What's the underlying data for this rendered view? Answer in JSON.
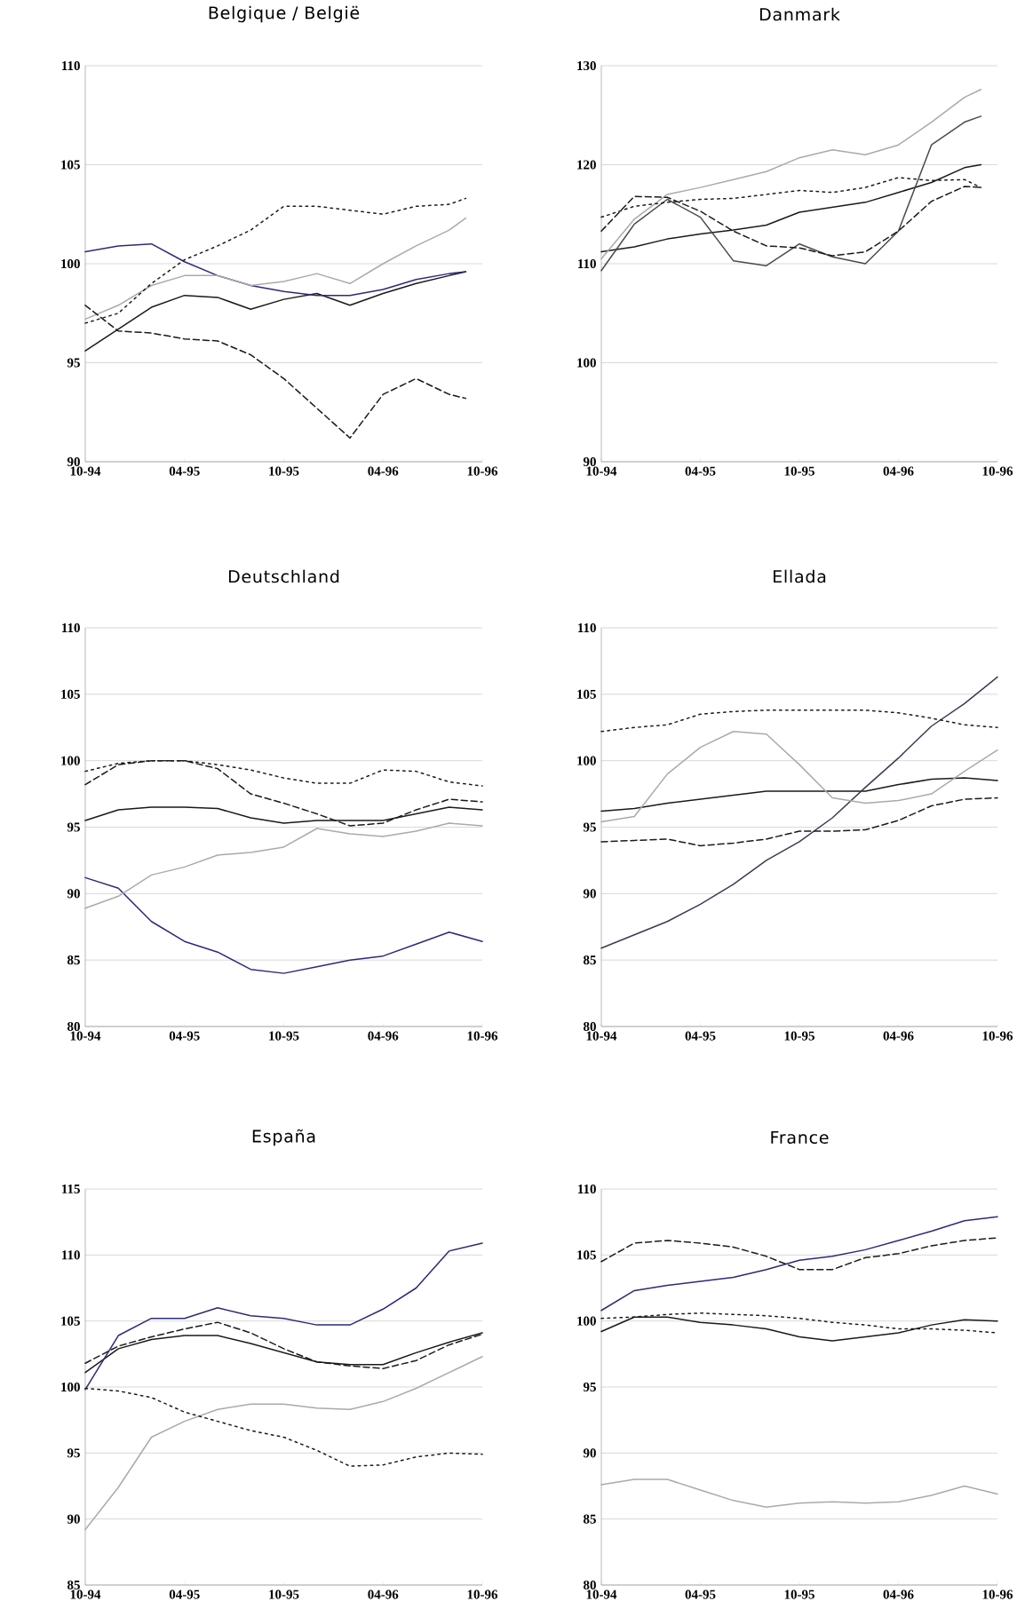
{
  "chart_data": [
    {
      "type": "line",
      "title": "Belgique / België",
      "x": [
        "1994-10",
        "1994-12",
        "1995-02",
        "1995-04",
        "1995-06",
        "1995-08",
        "1995-10",
        "1995-12",
        "1996-02",
        "1996-04",
        "1996-06",
        "1996-08",
        "1996-09"
      ],
      "xlim": [
        "1994-10",
        "1996-10"
      ],
      "xticks": [
        {
          "value": "1994-10",
          "label": "10-94"
        },
        {
          "value": "1995-04",
          "label": "04-95"
        },
        {
          "value": "1995-10",
          "label": "10-95"
        },
        {
          "value": "1996-04",
          "label": "04-96"
        },
        {
          "value": "1996-10",
          "label": "10-96"
        }
      ],
      "ylim": [
        90,
        110
      ],
      "yticks": [
        90,
        95,
        100,
        105,
        110
      ],
      "grid": "y",
      "series": [
        {
          "color": "#1a1a1a",
          "line_style": "solid",
          "values": [
            95.6,
            96.7,
            97.8,
            98.4,
            98.3,
            97.7,
            98.2,
            98.5,
            97.9,
            98.5,
            99.0,
            99.4,
            99.6
          ]
        },
        {
          "color": "#2b2b7a",
          "line_style": "solid",
          "values": [
            100.6,
            100.9,
            101.0,
            100.1,
            99.4,
            98.9,
            98.6,
            98.4,
            98.4,
            98.7,
            99.2,
            99.5,
            99.6
          ]
        },
        {
          "color": "#aaaaaa",
          "line_style": "solid",
          "values": [
            97.2,
            97.9,
            98.9,
            99.4,
            99.4,
            98.9,
            99.1,
            99.5,
            99.0,
            100.0,
            100.9,
            101.7,
            102.3
          ]
        },
        {
          "color": "#1a1a1a",
          "line_style": "dotted",
          "values": [
            97.0,
            97.5,
            99.0,
            100.2,
            100.9,
            101.7,
            102.9,
            102.9,
            102.7,
            102.5,
            102.9,
            103.0,
            103.3
          ]
        },
        {
          "color": "#1a1a1a",
          "line_style": "dashed",
          "values": [
            97.9,
            96.6,
            96.5,
            96.2,
            96.1,
            95.4,
            94.2,
            92.7,
            91.2,
            93.4,
            94.2,
            93.4,
            93.2
          ]
        }
      ]
    },
    {
      "type": "line",
      "title": "Danmark",
      "x": [
        "1994-10",
        "1994-12",
        "1995-02",
        "1995-04",
        "1995-06",
        "1995-08",
        "1995-10",
        "1995-12",
        "1996-02",
        "1996-04",
        "1996-06",
        "1996-08",
        "1996-09"
      ],
      "xlim": [
        "1994-10",
        "1996-10"
      ],
      "xticks": [
        {
          "value": "1994-10",
          "label": "10-94"
        },
        {
          "value": "1995-04",
          "label": "04-95"
        },
        {
          "value": "1995-10",
          "label": "10-95"
        },
        {
          "value": "1996-04",
          "label": "04-96"
        },
        {
          "value": "1996-10",
          "label": "10-96"
        }
      ],
      "ylim": [
        90,
        130
      ],
      "yticks": [
        90,
        100,
        110,
        120,
        130
      ],
      "grid": "y",
      "series": [
        {
          "color": "#1a1a1a",
          "line_style": "solid",
          "values": [
            111.2,
            111.7,
            112.5,
            113.0,
            113.4,
            113.9,
            115.2,
            115.7,
            116.2,
            117.2,
            118.2,
            119.7,
            120.0
          ]
        },
        {
          "color": "#4a4a4a",
          "line_style": "solid",
          "values": [
            109.3,
            114.0,
            116.5,
            114.7,
            110.3,
            109.8,
            112.0,
            110.7,
            110.0,
            113.3,
            122.0,
            124.3,
            124.9
          ]
        },
        {
          "color": "#aaaaaa",
          "line_style": "solid",
          "values": [
            110.5,
            114.5,
            117.0,
            117.7,
            118.5,
            119.3,
            120.7,
            121.5,
            121.0,
            122.0,
            124.3,
            126.8,
            127.6
          ]
        },
        {
          "color": "#1a1a1a",
          "line_style": "dotted",
          "values": [
            114.7,
            115.8,
            116.2,
            116.5,
            116.6,
            117.0,
            117.4,
            117.2,
            117.7,
            118.7,
            118.4,
            118.5,
            117.7
          ]
        },
        {
          "color": "#1a1a1a",
          "line_style": "dashed",
          "values": [
            113.3,
            116.8,
            116.7,
            115.3,
            113.3,
            111.8,
            111.6,
            110.8,
            111.2,
            113.3,
            116.3,
            117.8,
            117.7
          ]
        }
      ]
    },
    {
      "type": "line",
      "title": "Deutschland",
      "x": [
        "1994-10",
        "1994-12",
        "1995-02",
        "1995-04",
        "1995-06",
        "1995-08",
        "1995-10",
        "1995-12",
        "1996-02",
        "1996-04",
        "1996-06",
        "1996-08",
        "1996-10"
      ],
      "xlim": [
        "1994-10",
        "1996-10"
      ],
      "xticks": [
        {
          "value": "1994-10",
          "label": "10-94"
        },
        {
          "value": "1995-04",
          "label": "04-95"
        },
        {
          "value": "1995-10",
          "label": "10-95"
        },
        {
          "value": "1996-04",
          "label": "04-96"
        },
        {
          "value": "1996-10",
          "label": "10-96"
        }
      ],
      "ylim": [
        80,
        110
      ],
      "yticks": [
        80,
        85,
        90,
        95,
        100,
        105,
        110
      ],
      "grid": "y",
      "series": [
        {
          "color": "#1a1a1a",
          "line_style": "solid",
          "values": [
            95.5,
            96.3,
            96.5,
            96.5,
            96.4,
            95.7,
            95.3,
            95.5,
            95.5,
            95.5,
            96.0,
            96.5,
            96.3
          ]
        },
        {
          "color": "#2b2b7a",
          "line_style": "solid",
          "values": [
            91.2,
            90.4,
            87.9,
            86.4,
            85.6,
            84.3,
            84.0,
            84.5,
            85.0,
            85.3,
            86.2,
            87.1,
            86.4
          ]
        },
        {
          "color": "#aaaaaa",
          "line_style": "solid",
          "values": [
            88.9,
            89.8,
            91.4,
            92.0,
            92.9,
            93.1,
            93.5,
            94.9,
            94.5,
            94.3,
            94.7,
            95.3,
            95.1
          ]
        },
        {
          "color": "#1a1a1a",
          "line_style": "dotted",
          "values": [
            99.2,
            99.8,
            100.0,
            100.0,
            99.7,
            99.3,
            98.7,
            98.3,
            98.3,
            99.3,
            99.2,
            98.4,
            98.1
          ]
        },
        {
          "color": "#1a1a1a",
          "line_style": "dashed",
          "values": [
            98.2,
            99.7,
            100.0,
            100.0,
            99.4,
            97.5,
            96.8,
            96.0,
            95.1,
            95.3,
            96.3,
            97.1,
            96.9
          ]
        }
      ]
    },
    {
      "type": "line",
      "title": "Ellada",
      "x": [
        "1994-10",
        "1994-12",
        "1995-02",
        "1995-04",
        "1995-06",
        "1995-08",
        "1995-10",
        "1995-12",
        "1996-02",
        "1996-04",
        "1996-06",
        "1996-08",
        "1996-10"
      ],
      "xlim": [
        "1994-10",
        "1996-10"
      ],
      "xticks": [
        {
          "value": "1994-10",
          "label": "10-94"
        },
        {
          "value": "1995-04",
          "label": "04-95"
        },
        {
          "value": "1995-10",
          "label": "10-95"
        },
        {
          "value": "1996-04",
          "label": "04-96"
        },
        {
          "value": "1996-10",
          "label": "10-96"
        }
      ],
      "ylim": [
        80,
        110
      ],
      "yticks": [
        80,
        85,
        90,
        95,
        100,
        105,
        110
      ],
      "grid": "y",
      "series": [
        {
          "color": "#1a1a1a",
          "line_style": "solid",
          "values": [
            96.2,
            96.4,
            96.8,
            97.1,
            97.4,
            97.7,
            97.7,
            97.7,
            97.7,
            98.2,
            98.6,
            98.7,
            98.5
          ]
        },
        {
          "color": "#3a3a55",
          "line_style": "solid",
          "values": [
            85.9,
            86.9,
            87.9,
            89.2,
            90.7,
            92.5,
            93.9,
            95.7,
            98.0,
            100.2,
            102.6,
            104.3,
            106.3
          ]
        },
        {
          "color": "#aaaaaa",
          "line_style": "solid",
          "values": [
            95.4,
            95.8,
            99.0,
            101.0,
            102.2,
            102.0,
            99.7,
            97.2,
            96.8,
            97.0,
            97.5,
            99.2,
            100.8
          ]
        },
        {
          "color": "#1a1a1a",
          "line_style": "dotted",
          "values": [
            102.2,
            102.5,
            102.7,
            103.5,
            103.7,
            103.8,
            103.8,
            103.8,
            103.8,
            103.6,
            103.2,
            102.7,
            102.5
          ]
        },
        {
          "color": "#1a1a1a",
          "line_style": "dashed",
          "values": [
            93.9,
            94.0,
            94.1,
            93.6,
            93.8,
            94.1,
            94.7,
            94.7,
            94.8,
            95.5,
            96.6,
            97.1,
            97.2
          ]
        }
      ]
    },
    {
      "type": "line",
      "title": "España",
      "x": [
        "1994-10",
        "1994-12",
        "1995-02",
        "1995-04",
        "1995-06",
        "1995-08",
        "1995-10",
        "1995-12",
        "1996-02",
        "1996-04",
        "1996-06",
        "1996-08",
        "1996-10"
      ],
      "xlim": [
        "1994-10",
        "1996-10"
      ],
      "xticks": [
        {
          "value": "1994-10",
          "label": "10-94"
        },
        {
          "value": "1995-04",
          "label": "04-95"
        },
        {
          "value": "1995-10",
          "label": "10-95"
        },
        {
          "value": "1996-04",
          "label": "04-96"
        },
        {
          "value": "1996-10",
          "label": "10-96"
        }
      ],
      "ylim": [
        85,
        115
      ],
      "yticks": [
        85,
        90,
        95,
        100,
        105,
        110,
        115
      ],
      "grid": "y",
      "series": [
        {
          "color": "#1a1a1a",
          "line_style": "solid",
          "values": [
            101.1,
            102.9,
            103.6,
            103.9,
            103.9,
            103.3,
            102.6,
            101.9,
            101.7,
            101.7,
            102.6,
            103.4,
            104.1
          ]
        },
        {
          "color": "#2b2b7a",
          "line_style": "solid",
          "values": [
            99.8,
            103.9,
            105.2,
            105.2,
            106.0,
            105.4,
            105.2,
            104.7,
            104.7,
            105.9,
            107.5,
            110.3,
            110.9
          ]
        },
        {
          "color": "#aaaaaa",
          "line_style": "solid",
          "values": [
            89.2,
            92.4,
            96.2,
            97.4,
            98.3,
            98.7,
            98.7,
            98.4,
            98.3,
            98.9,
            99.9,
            101.1,
            102.3
          ]
        },
        {
          "color": "#1a1a1a",
          "line_style": "dashed",
          "values": [
            101.8,
            103.1,
            103.8,
            104.4,
            104.9,
            104.1,
            102.9,
            101.9,
            101.6,
            101.4,
            102.0,
            103.2,
            104.0
          ]
        },
        {
          "color": "#1a1a1a",
          "line_style": "dotted",
          "values": [
            99.9,
            99.7,
            99.2,
            98.1,
            97.4,
            96.7,
            96.2,
            95.2,
            94.0,
            94.1,
            94.7,
            95.0,
            94.9
          ]
        }
      ]
    },
    {
      "type": "line",
      "title": "France",
      "x": [
        "1994-10",
        "1994-12",
        "1995-02",
        "1995-04",
        "1995-06",
        "1995-08",
        "1995-10",
        "1995-12",
        "1996-02",
        "1996-04",
        "1996-06",
        "1996-08",
        "1996-10"
      ],
      "xlim": [
        "1994-10",
        "1996-10"
      ],
      "xticks": [
        {
          "value": "1994-10",
          "label": "10-94"
        },
        {
          "value": "1995-04",
          "label": "04-95"
        },
        {
          "value": "1995-10",
          "label": "10-95"
        },
        {
          "value": "1996-04",
          "label": "04-96"
        },
        {
          "value": "1996-10",
          "label": "10-96"
        }
      ],
      "ylim": [
        80,
        110
      ],
      "yticks": [
        80,
        85,
        90,
        95,
        100,
        105,
        110
      ],
      "grid": "y",
      "series": [
        {
          "color": "#1a1a1a",
          "line_style": "solid",
          "values": [
            99.2,
            100.3,
            100.3,
            99.9,
            99.7,
            99.4,
            98.8,
            98.5,
            98.8,
            99.1,
            99.7,
            100.1,
            100.0
          ]
        },
        {
          "color": "#2b2b7a",
          "line_style": "solid",
          "values": [
            100.8,
            102.3,
            102.7,
            103.0,
            103.3,
            103.9,
            104.6,
            104.9,
            105.4,
            106.1,
            106.8,
            107.6,
            107.9
          ]
        },
        {
          "color": "#aaaaaa",
          "line_style": "solid",
          "values": [
            87.6,
            88.0,
            88.0,
            87.2,
            86.4,
            85.9,
            86.2,
            86.3,
            86.2,
            86.3,
            86.8,
            87.5,
            86.9
          ]
        },
        {
          "color": "#1a1a1a",
          "line_style": "dashed",
          "values": [
            104.5,
            105.9,
            106.1,
            105.9,
            105.6,
            104.9,
            103.9,
            103.9,
            104.8,
            105.1,
            105.7,
            106.1,
            106.3
          ]
        },
        {
          "color": "#1a1a1a",
          "line_style": "dotted",
          "values": [
            100.2,
            100.3,
            100.5,
            100.6,
            100.5,
            100.4,
            100.2,
            99.9,
            99.7,
            99.4,
            99.4,
            99.3,
            99.1
          ]
        }
      ]
    }
  ]
}
